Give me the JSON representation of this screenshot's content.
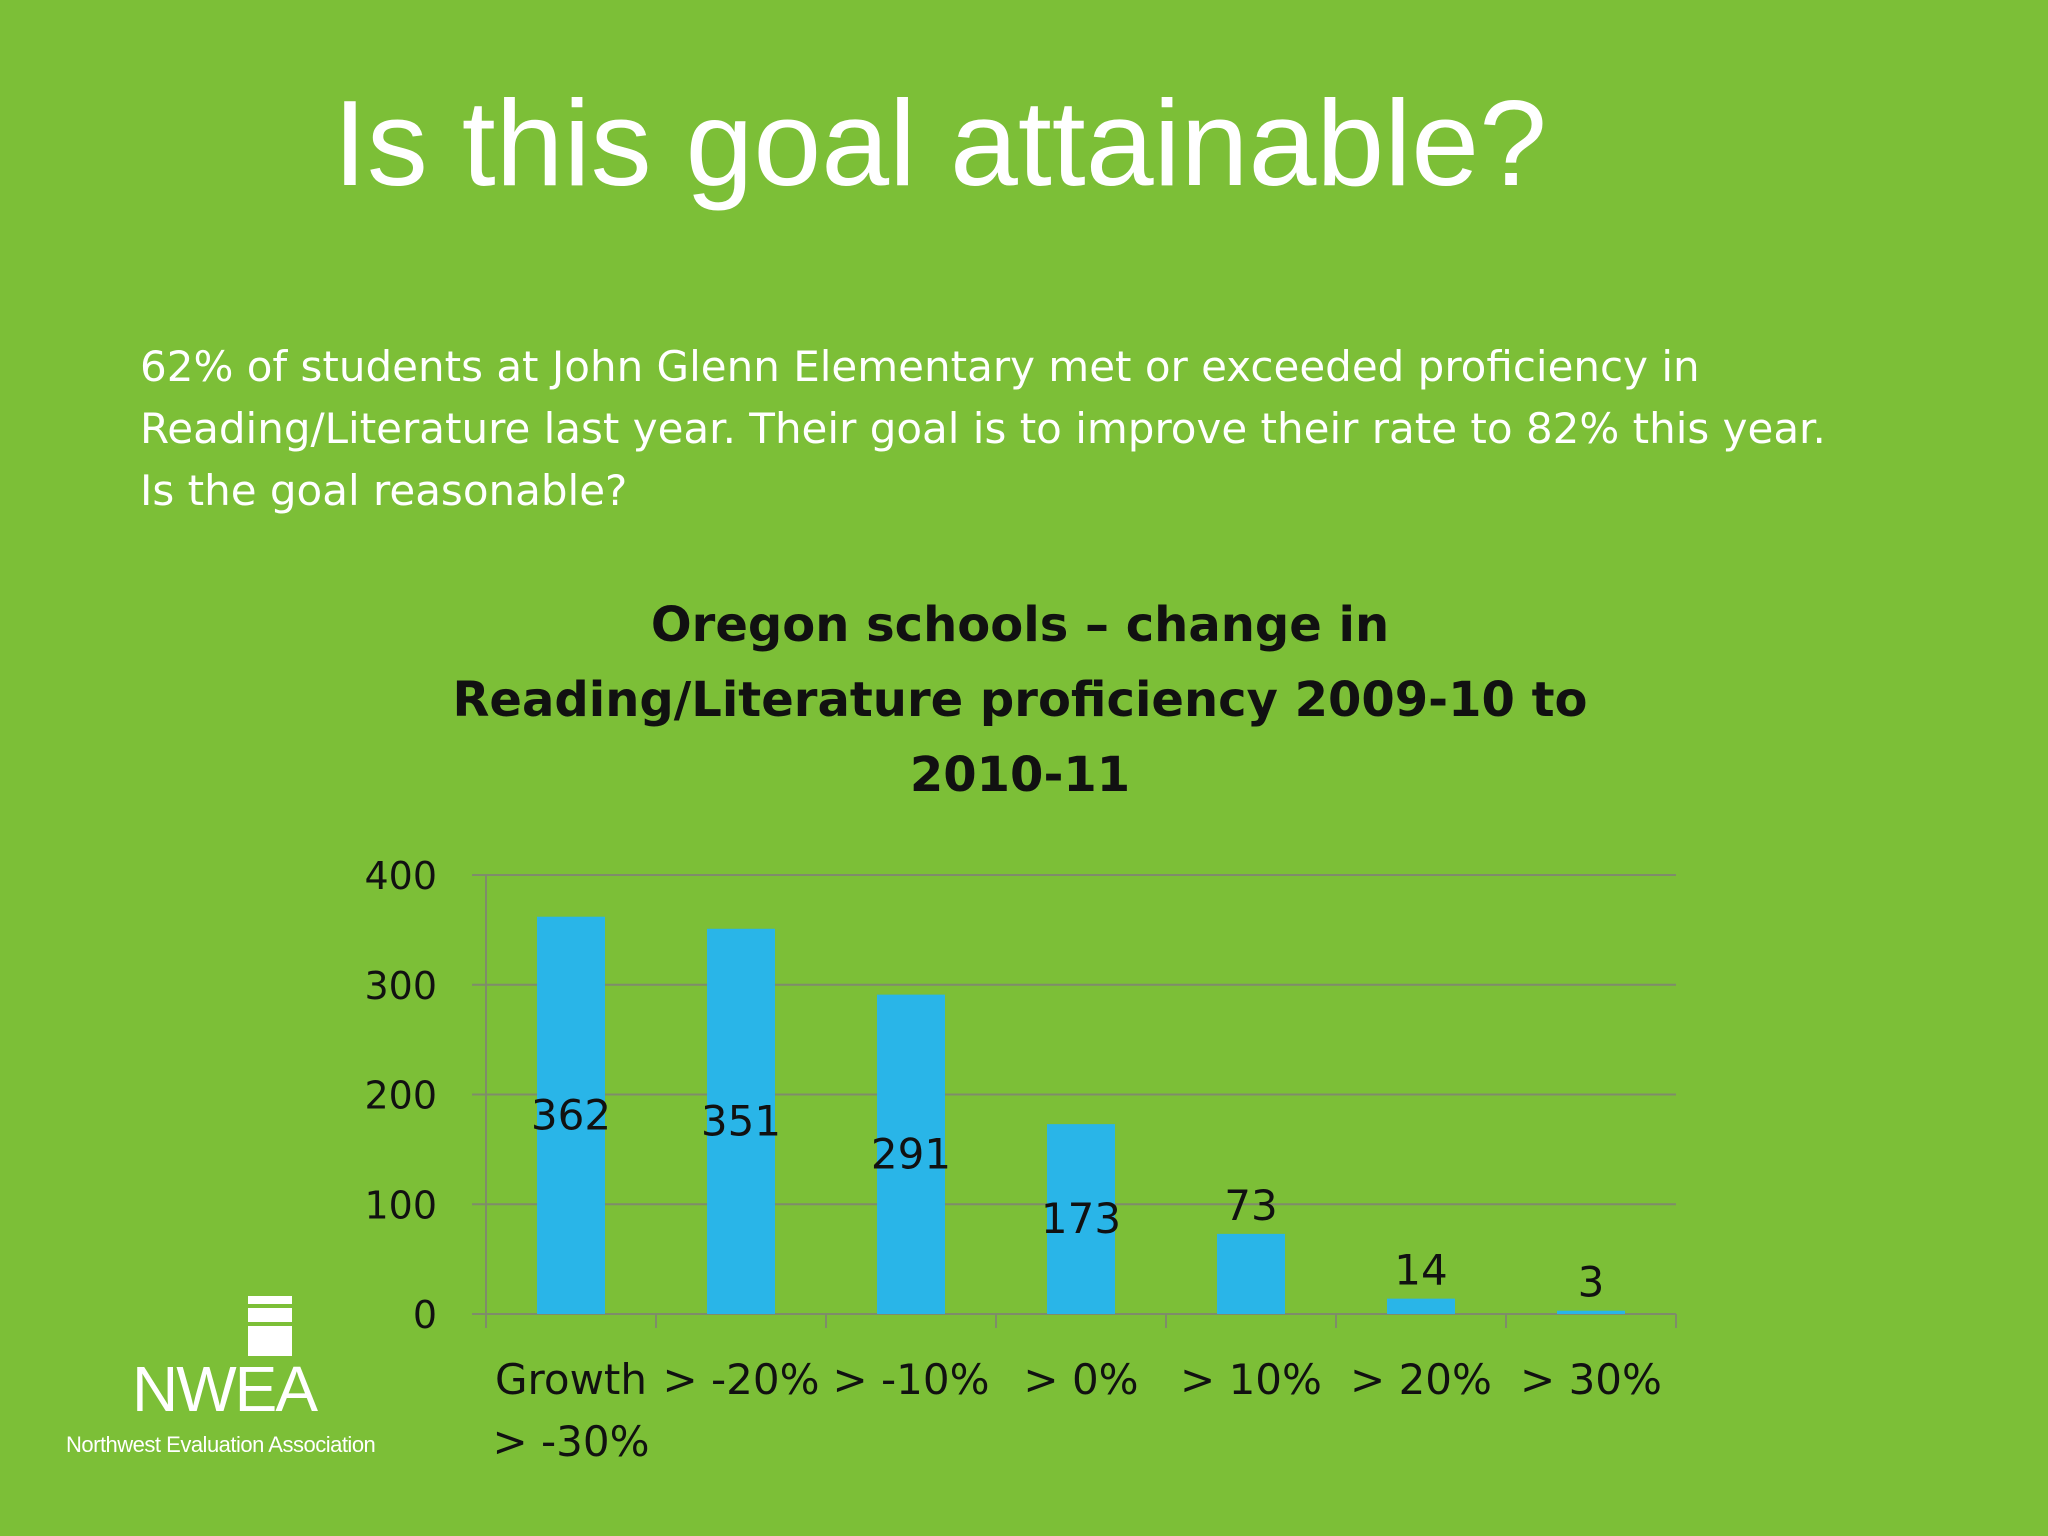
{
  "slide": {
    "title": "Is this goal attainable?",
    "intro": "62% of students at John Glenn Elementary met or exceeded proficiency in Reading/Literature last year.  Their goal is to improve their rate to 82% this year.  Is the goal reasonable?"
  },
  "logo": {
    "name": "NWEA",
    "subtitle": "Northwest Evaluation Association"
  },
  "colors": {
    "background": "#7cbf37",
    "bar": "#29b5e8",
    "gridline": "#7f8c6a"
  },
  "chart_data": {
    "type": "bar",
    "title_lines": [
      "Oregon schools – change in",
      "Reading/Literature proficiency 2009-10 to",
      "2010-11"
    ],
    "categories": [
      [
        "Growth",
        "> -30%"
      ],
      [
        "> -20%"
      ],
      [
        "> -10%"
      ],
      [
        "> 0%"
      ],
      [
        "> 10%"
      ],
      [
        "> 20%"
      ],
      [
        "> 30%"
      ]
    ],
    "values": [
      362,
      351,
      291,
      173,
      73,
      14,
      3
    ],
    "ylim": [
      0,
      400
    ],
    "yticks": [
      0,
      100,
      200,
      300,
      400
    ],
    "grid": true,
    "legend": "none",
    "data_labels": true
  }
}
